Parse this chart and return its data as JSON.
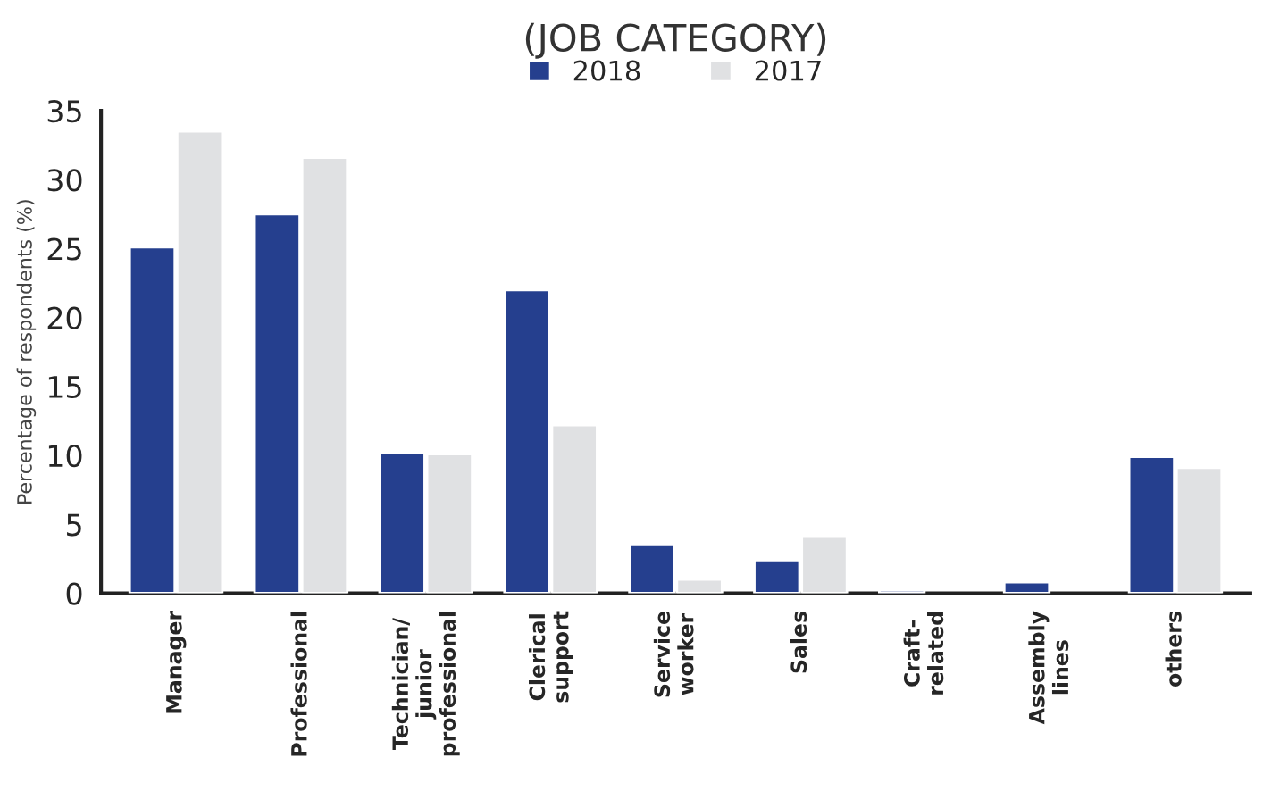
{
  "chart_data": {
    "type": "bar",
    "title": "(JOB CATEGORY)",
    "ylabel": "Percentage of respondents (%)",
    "categories": [
      "Manager",
      "Professional",
      "Technician/\njunior\nprofessional",
      "Clerical\nsupport",
      "Service\nworker",
      "Sales",
      "Craft-\nrelated",
      "Assembly\nlines",
      "others"
    ],
    "series": [
      {
        "name": "2018",
        "color": "#253f8e",
        "values": [
          25.1,
          27.5,
          10.2,
          22.0,
          3.5,
          2.4,
          0.2,
          0.8,
          9.9
        ]
      },
      {
        "name": "2017",
        "color": "#e0e1e3",
        "values": [
          33.5,
          31.6,
          10.1,
          12.2,
          1.0,
          4.1,
          null,
          null,
          9.1
        ]
      }
    ],
    "ylim": [
      0,
      35
    ],
    "yticks": [
      0,
      5,
      10,
      15,
      20,
      25,
      30,
      35
    ],
    "grid": false,
    "legend": "top"
  }
}
